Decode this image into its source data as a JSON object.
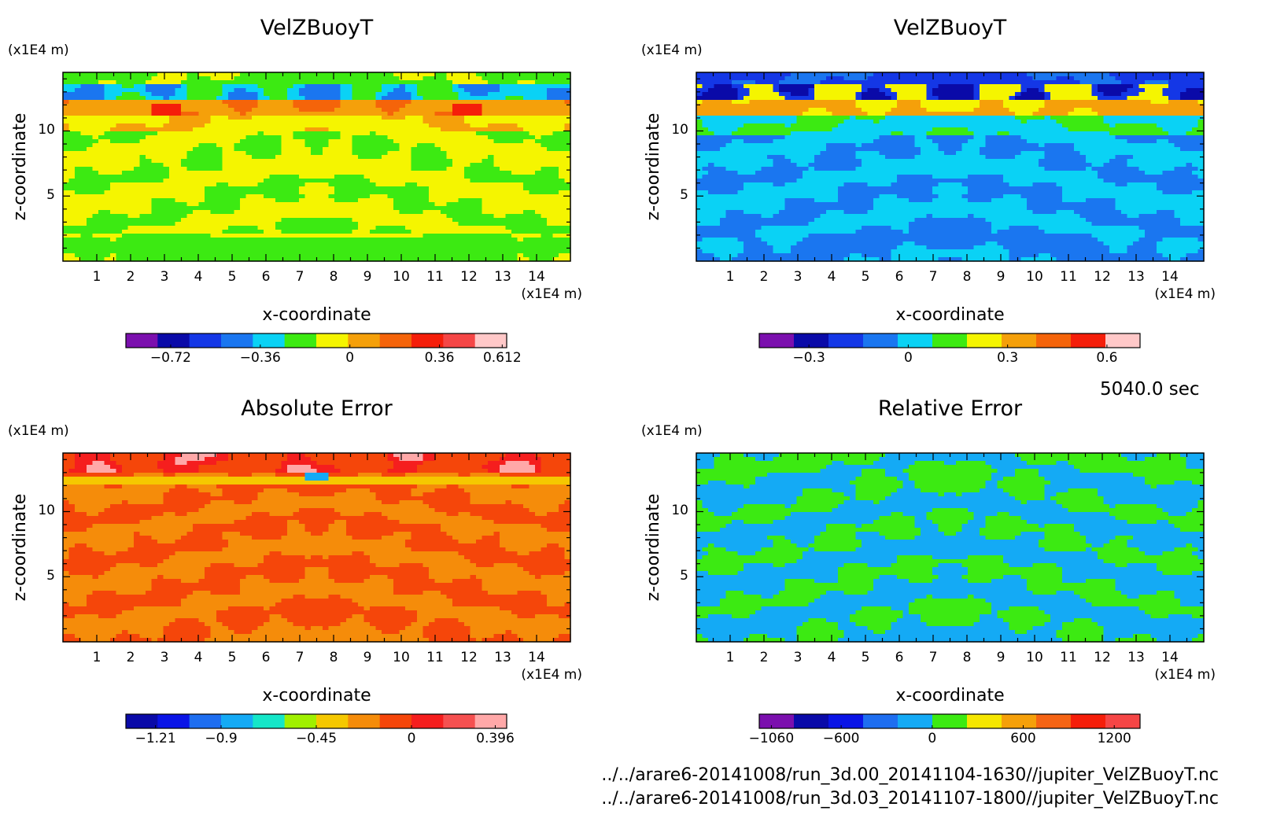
{
  "stamp": "5040.0 sec",
  "file_paths": [
    "../../arare6-20141008/run_3d.00_20141104-1630//jupiter_VelZBuoyT.nc",
    "../../arare6-20141008/run_3d.03_20141107-1800//jupiter_VelZBuoyT.nc"
  ],
  "chart_data": [
    {
      "type": "heatmap",
      "title": "VelZBuoyT",
      "xlabel": "x-coordinate",
      "ylabel": "z-coordinate",
      "x_unit": "(x1E4 m)",
      "y_unit": "(x1E4 m)",
      "xlim": [
        0,
        15
      ],
      "ylim": [
        0,
        14.5
      ],
      "x_ticks": [
        "1",
        "2",
        "3",
        "4",
        "5",
        "6",
        "7",
        "8",
        "9",
        "10",
        "11",
        "12",
        "13",
        "14"
      ],
      "y_ticks": [
        "5",
        "10"
      ],
      "colorbar": {
        "min": -0.9,
        "max": 0.63,
        "colors": [
          "#7b0fae",
          "#0a0aa8",
          "#1437e6",
          "#1a76f0",
          "#0ad2f5",
          "#3cea12",
          "#f5f500",
          "#f5a00a",
          "#f5640a",
          "#f51e0a",
          "#f54646",
          "#ffc8c8"
        ],
        "ticks": [
          {
            "value": -0.72,
            "label": "−0.72"
          },
          {
            "value": -0.36,
            "label": "−0.36"
          },
          {
            "value": 0,
            "label": "0"
          },
          {
            "value": 0.36,
            "label": "0.36"
          },
          {
            "value": 0.612,
            "label": "0.612"
          }
        ]
      },
      "scheme": "a"
    },
    {
      "type": "heatmap",
      "title": "VelZBuoyT",
      "xlabel": "x-coordinate",
      "ylabel": "z-coordinate",
      "x_unit": "(x1E4 m)",
      "y_unit": "(x1E4 m)",
      "xlim": [
        0,
        15
      ],
      "ylim": [
        0,
        14.5
      ],
      "x_ticks": [
        "1",
        "2",
        "3",
        "4",
        "5",
        "6",
        "7",
        "8",
        "9",
        "10",
        "11",
        "12",
        "13",
        "14"
      ],
      "y_ticks": [
        "5",
        "10"
      ],
      "colorbar": {
        "min": -0.45,
        "max": 0.7,
        "colors": [
          "#7b0fae",
          "#0a0aa8",
          "#1437e6",
          "#1a76f0",
          "#0ad2f5",
          "#3cea12",
          "#f5f500",
          "#f5a00a",
          "#f5640a",
          "#f51e0a",
          "#ffc8c8"
        ],
        "ticks": [
          {
            "value": -0.3,
            "label": "−0.3"
          },
          {
            "value": 0,
            "label": "0"
          },
          {
            "value": 0.3,
            "label": "0.3"
          },
          {
            "value": 0.6,
            "label": "0.6"
          }
        ]
      },
      "scheme": "b"
    },
    {
      "type": "heatmap",
      "title": "Absolute Error",
      "xlabel": "x-coordinate",
      "ylabel": "z-coordinate",
      "x_unit": "(x1E4 m)",
      "y_unit": "(x1E4 m)",
      "xlim": [
        0,
        15
      ],
      "ylim": [
        0,
        14.5
      ],
      "x_ticks": [
        "1",
        "2",
        "3",
        "4",
        "5",
        "6",
        "7",
        "8",
        "9",
        "10",
        "11",
        "12",
        "13",
        "14"
      ],
      "y_ticks": [
        "5",
        "10"
      ],
      "colorbar": {
        "min": -1.35,
        "max": 0.45,
        "colors": [
          "#0a0aa8",
          "#0a14e6",
          "#1e6ef0",
          "#14aaf5",
          "#14e6c8",
          "#a0f000",
          "#f5c800",
          "#f58c0a",
          "#f5460a",
          "#f51e1e",
          "#f55050",
          "#ffa8a8"
        ],
        "ticks": [
          {
            "value": -1.21,
            "label": "−1.21"
          },
          {
            "value": -0.9,
            "label": "−0.9"
          },
          {
            "value": -0.45,
            "label": "−0.45"
          },
          {
            "value": 0,
            "label": "0"
          },
          {
            "value": 0.396,
            "label": "0.396"
          }
        ]
      },
      "scheme": "c"
    },
    {
      "type": "heatmap",
      "title": "Relative Error",
      "xlabel": "x-coordinate",
      "ylabel": "z-coordinate",
      "x_unit": "(x1E4 m)",
      "y_unit": "(x1E4 m)",
      "xlim": [
        0,
        15
      ],
      "ylim": [
        0,
        14.5
      ],
      "x_ticks": [
        "1",
        "2",
        "3",
        "4",
        "5",
        "6",
        "7",
        "8",
        "9",
        "10",
        "11",
        "12",
        "13",
        "14"
      ],
      "y_ticks": [
        "5",
        "10"
      ],
      "colorbar": {
        "min": -1140,
        "max": 1370,
        "colors": [
          "#7b0fae",
          "#0a0aa8",
          "#0a14e6",
          "#1e6ef0",
          "#14aaf5",
          "#3cea12",
          "#f5e600",
          "#f5a00a",
          "#f56414",
          "#f51e0a",
          "#f54646"
        ],
        "ticks": [
          {
            "value": -1060,
            "label": "−1060"
          },
          {
            "value": -600,
            "label": "−600"
          },
          {
            "value": 0,
            "label": "0"
          },
          {
            "value": 600,
            "label": "600"
          },
          {
            "value": 1200,
            "label": "1200"
          }
        ]
      },
      "scheme": "d"
    }
  ]
}
